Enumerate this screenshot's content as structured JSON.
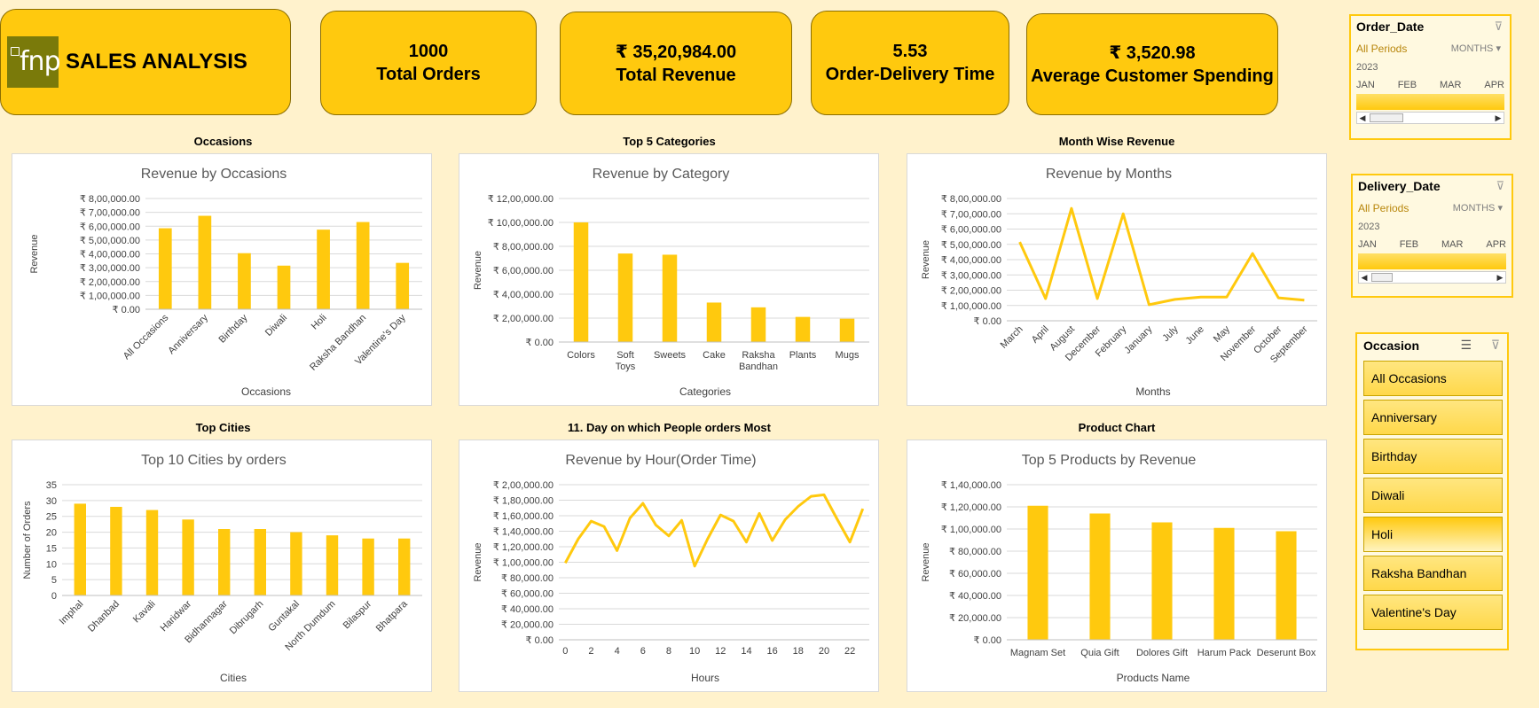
{
  "header": {
    "logo_text": "fnp",
    "title": "SALES ANALYSIS"
  },
  "kpis": [
    {
      "value": "1000",
      "label": "Total Orders"
    },
    {
      "value": "₹ 35,20,984.00",
      "label": "Total Revenue"
    },
    {
      "value": "5.53",
      "label": "Order-Delivery Time"
    },
    {
      "value": "₹ 3,520.98",
      "label": "Average Customer Spending"
    }
  ],
  "sections": {
    "occasions": "Occasions",
    "categories": "Top 5 Categories",
    "months": "Month Wise Revenue",
    "cities": "Top Cities",
    "hours": "11. Day on which People orders Most",
    "products": "Product Chart"
  },
  "chart_data": [
    {
      "type": "bar",
      "title": "Revenue by Occasions",
      "xlabel": "Occasions",
      "ylabel": "Revenue",
      "categories": [
        "All Occasions",
        "Anniversary",
        "Birthday",
        "Diwali",
        "Holi",
        "Raksha Bandhan",
        "Valentine's Day"
      ],
      "values": [
        585000,
        675000,
        405000,
        315000,
        575000,
        630000,
        335000
      ],
      "ylim": [
        0,
        800000
      ],
      "yticks": [
        "₹ 0.00",
        "₹ 1,00,000.00",
        "₹ 2,00,000.00",
        "₹ 3,00,000.00",
        "₹ 4,00,000.00",
        "₹ 5,00,000.00",
        "₹ 6,00,000.00",
        "₹ 7,00,000.00",
        "₹ 8,00,000.00"
      ],
      "color": "#FFC90E",
      "grid": true
    },
    {
      "type": "bar",
      "title": "Revenue by Category",
      "xlabel": "Categories",
      "ylabel": "Revenue",
      "categories": [
        "Colors",
        "Soft Toys",
        "Sweets",
        "Cake",
        "Raksha Bandhan",
        "Plants",
        "Mugs"
      ],
      "values": [
        1000000,
        740000,
        730000,
        330000,
        290000,
        210000,
        195000
      ],
      "ylim": [
        0,
        1200000
      ],
      "yticks": [
        "₹ 0.00",
        "₹ 2,00,000.00",
        "₹ 4,00,000.00",
        "₹ 6,00,000.00",
        "₹ 8,00,000.00",
        "₹ 10,00,000.00",
        "₹ 12,00,000.00"
      ],
      "color": "#FFC90E",
      "grid": true
    },
    {
      "type": "line",
      "title": "Revenue by Months",
      "xlabel": "Months",
      "ylabel": "Revenue",
      "categories": [
        "March",
        "April",
        "August",
        "December",
        "February",
        "January",
        "July",
        "June",
        "May",
        "November",
        "October",
        "September"
      ],
      "values": [
        515000,
        145000,
        735000,
        145000,
        700000,
        105000,
        140000,
        155000,
        155000,
        440000,
        150000,
        135000
      ],
      "ylim": [
        0,
        800000
      ],
      "yticks": [
        "₹ 0.00",
        "₹ 1,00,000.00",
        "₹ 2,00,000.00",
        "₹ 3,00,000.00",
        "₹ 4,00,000.00",
        "₹ 5,00,000.00",
        "₹ 6,00,000.00",
        "₹ 7,00,000.00",
        "₹ 8,00,000.00"
      ],
      "color": "#FFC90E",
      "grid": true
    },
    {
      "type": "bar",
      "title": "Top 10 Cities by orders",
      "xlabel": "Cities",
      "ylabel": "Number of Orders",
      "categories": [
        "Imphal",
        "Dhanbad",
        "Kavali",
        "Haridwar",
        "Bidhannagar",
        "Dibrugarh",
        "Guntakal",
        "North Dumdum",
        "Bilaspur",
        "Bhatpara"
      ],
      "values": [
        29,
        28,
        27,
        24,
        21,
        21,
        20,
        19,
        18,
        18
      ],
      "ylim": [
        0,
        35
      ],
      "yticks": [
        "0",
        "5",
        "10",
        "15",
        "20",
        "25",
        "30",
        "35"
      ],
      "color": "#FFC90E",
      "grid": true
    },
    {
      "type": "line",
      "title": "Revenue by Hour(Order Time)",
      "xlabel": "Hours",
      "ylabel": "Revenue",
      "x": [
        0,
        1,
        2,
        3,
        4,
        5,
        6,
        7,
        8,
        9,
        10,
        11,
        12,
        13,
        14,
        15,
        16,
        17,
        18,
        19,
        20,
        21,
        22,
        23
      ],
      "values": [
        99000,
        130000,
        153000,
        146000,
        115000,
        157000,
        176000,
        148000,
        134000,
        154000,
        95000,
        130000,
        161000,
        153000,
        126000,
        163000,
        128000,
        155000,
        172000,
        185000,
        187000,
        156000,
        126000,
        169000
      ],
      "xticks": [
        "0",
        "2",
        "4",
        "6",
        "8",
        "10",
        "12",
        "14",
        "16",
        "18",
        "20",
        "22"
      ],
      "ylim": [
        0,
        200000
      ],
      "yticks": [
        "₹ 0.00",
        "₹ 20,000.00",
        "₹ 40,000.00",
        "₹ 60,000.00",
        "₹ 80,000.00",
        "₹ 1,00,000.00",
        "₹ 1,20,000.00",
        "₹ 1,40,000.00",
        "₹ 1,60,000.00",
        "₹ 1,80,000.00",
        "₹ 2,00,000.00"
      ],
      "color": "#FFC90E",
      "grid": true
    },
    {
      "type": "bar",
      "title": "Top 5 Products by Revenue",
      "xlabel": "Products Name",
      "ylabel": "Revenue",
      "categories": [
        "Magnam Set",
        "Quia Gift",
        "Dolores Gift",
        "Harum Pack",
        "Deserunt Box"
      ],
      "values": [
        121000,
        114000,
        106000,
        101000,
        98000
      ],
      "ylim": [
        0,
        140000
      ],
      "yticks": [
        "₹ 0.00",
        "₹ 20,000.00",
        "₹ 40,000.00",
        "₹ 60,000.00",
        "₹ 80,000.00",
        "₹ 1,00,000.00",
        "₹ 1,20,000.00",
        "₹ 1,40,000.00"
      ],
      "color": "#FFC90E",
      "grid": true
    }
  ],
  "slicers": {
    "order_date": {
      "title": "Order_Date",
      "period": "All Periods",
      "level": "MONTHS",
      "year": "2023",
      "months": [
        "JAN",
        "FEB",
        "MAR",
        "APR"
      ]
    },
    "delivery_date": {
      "title": "Delivery_Date",
      "period": "All Periods",
      "level": "MONTHS",
      "year": "2023",
      "months": [
        "JAN",
        "FEB",
        "MAR",
        "APR"
      ]
    },
    "occasion": {
      "title": "Occasion",
      "items": [
        "All Occasions",
        "Anniversary",
        "Birthday",
        "Diwali",
        "Holi",
        "Raksha Bandhan",
        "Valentine's Day"
      ]
    }
  },
  "icons": {
    "filter_clear": "filter-clear-icon",
    "multiselect": "multi-select-icon",
    "dropdown": "dropdown-arrow-icon"
  }
}
